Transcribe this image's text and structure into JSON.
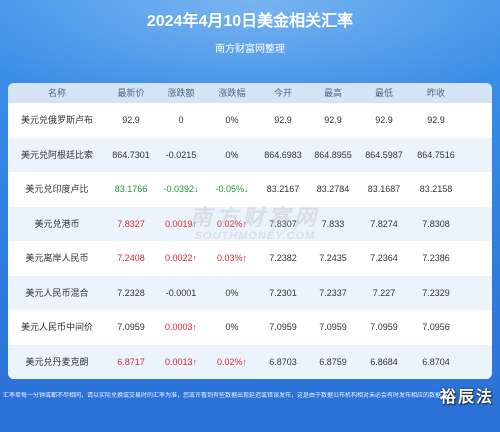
{
  "colors": {
    "background_top": "#4094ea",
    "background_bottom": "#2a70d6",
    "header_bg": "#d4e4f6",
    "header_text": "#4f6686",
    "row_alt": "#ebf3fc",
    "text": "#333333",
    "up": "#e3262b",
    "down": "#1c9a3a"
  },
  "chart_data": {
    "type": "table",
    "title": "2024年4月10日美金相关汇率",
    "subtitle": "南方财富网整理",
    "columns": [
      "名称",
      "最新价",
      "涨跌额",
      "涨跌幅",
      "今开",
      "最高",
      "最低",
      "昨收"
    ],
    "rows": [
      {
        "name": "美元兑俄罗斯卢布",
        "latest": "92.9",
        "change": "0",
        "change_pct": "0%",
        "open": "92.9",
        "high": "92.9",
        "low": "92.9",
        "prev_close": "92.9",
        "latest_color": "#333333",
        "change_color": "#333333",
        "change_pct_color": "#333333"
      },
      {
        "name": "美元兑阿根廷比索",
        "latest": "864.7301",
        "change": "-0.0215",
        "change_pct": "0%",
        "open": "864.6983",
        "high": "864.8955",
        "low": "864.5987",
        "prev_close": "864.7516",
        "latest_color": "#333333",
        "change_color": "#333333",
        "change_pct_color": "#333333"
      },
      {
        "name": "美元兑印度卢比",
        "latest": "83.1766",
        "change": "-0.0392↓",
        "change_pct": "-0.05%↓",
        "open": "83.2167",
        "high": "83.2784",
        "low": "83.1687",
        "prev_close": "83.2158",
        "latest_color": "#1c9a3a",
        "change_color": "#1c9a3a",
        "change_pct_color": "#1c9a3a"
      },
      {
        "name": "美元兑港币",
        "latest": "7.8327",
        "change": "0.0019↑",
        "change_pct": "0.02%↑",
        "open": "7.8307",
        "high": "7.833",
        "low": "7.8274",
        "prev_close": "7.8308",
        "latest_color": "#e3262b",
        "change_color": "#e3262b",
        "change_pct_color": "#e3262b"
      },
      {
        "name": "美元离岸人民币",
        "latest": "7.2408",
        "change": "0.0022↑",
        "change_pct": "0.03%↑",
        "open": "7.2382",
        "high": "7.2435",
        "low": "7.2364",
        "prev_close": "7.2386",
        "latest_color": "#e3262b",
        "change_color": "#e3262b",
        "change_pct_color": "#e3262b"
      },
      {
        "name": "美元人民币混合",
        "latest": "7.2328",
        "change": "-0.0001",
        "change_pct": "0%",
        "open": "7.2301",
        "high": "7.2337",
        "low": "7.227",
        "prev_close": "7.2329",
        "latest_color": "#333333",
        "change_color": "#333333",
        "change_pct_color": "#333333"
      },
      {
        "name": "美元人民币中间价",
        "latest": "7.0959",
        "change": "0.0003↑",
        "change_pct": "0%",
        "open": "7.0959",
        "high": "7.0959",
        "low": "7.0959",
        "prev_close": "7.0956",
        "latest_color": "#333333",
        "change_color": "#e3262b",
        "change_pct_color": "#333333"
      },
      {
        "name": "美元兑丹麦克朗",
        "latest": "6.8717",
        "change": "0.0013↑",
        "change_pct": "0.02%↑",
        "open": "6.8703",
        "high": "6.8759",
        "low": "6.8684",
        "prev_close": "6.8704",
        "latest_color": "#e3262b",
        "change_color": "#e3262b",
        "change_pct_color": "#e3262b"
      }
    ]
  },
  "watermark": {
    "site_name": "南方财富网",
    "site_url": "SOUTHMONEY.COM",
    "corner_mark": "裕辰法"
  },
  "footer_note": "汇率单每一分钟或都不尽相同，请以实际兑换或交易时的汇率为准，您或许看到有些数据出现延迟或错误发布，这是由于数据公布机构相对未必会有时发布相应的数据"
}
